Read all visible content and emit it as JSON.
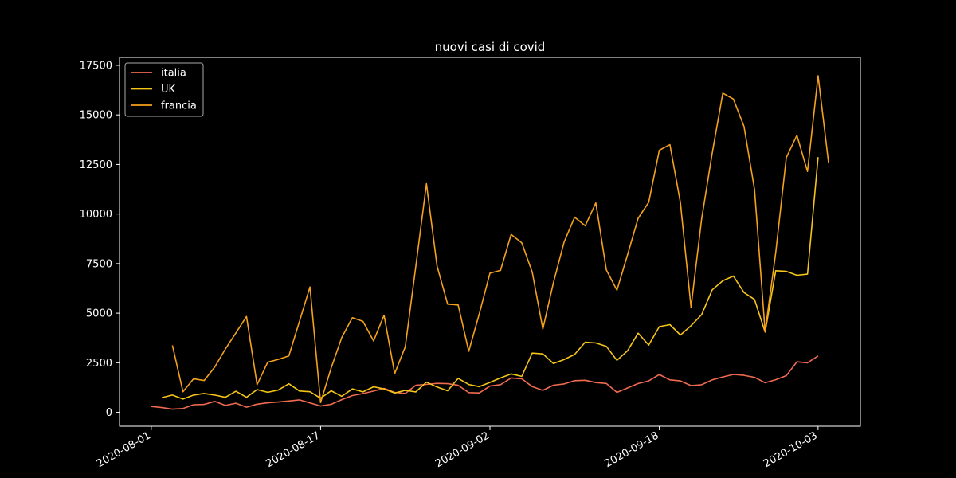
{
  "chart_data": {
    "type": "line",
    "title": "nuovi casi di covid",
    "xlabel": "",
    "ylabel": "",
    "x_start": "2020-08-01",
    "x_end": "2020-10-04",
    "xlim": [
      "2020-07-29",
      "2020-10-07"
    ],
    "ylim": [
      -700,
      17900
    ],
    "x_ticks": [
      "2020-08-01",
      "2020-08-17",
      "2020-09-02",
      "2020-09-18",
      "2020-10-03"
    ],
    "y_ticks": [
      0,
      2500,
      5000,
      7500,
      10000,
      12500,
      15000,
      17500
    ],
    "y_tick_labels": [
      "0",
      "2500",
      "5000",
      "7500",
      "10000",
      "12500",
      "15000",
      "17500"
    ],
    "legend_position": "top-left",
    "grid": false,
    "series": [
      {
        "name": "italia",
        "color": "#ef6a4f",
        "values": [
          295,
          239,
          159,
          190,
          384,
          402,
          552,
          347,
          463,
          259,
          412,
          481,
          523,
          574,
          629,
          479,
          320,
          403,
          642,
          845,
          947,
          1071,
          1210,
          1006,
          953,
          1367,
          1411,
          1460,
          1444,
          1365,
          996,
          978,
          1326,
          1397,
          1733,
          1695,
          1297,
          1108,
          1370,
          1434,
          1597,
          1616,
          1501,
          1458,
          1008,
          1229,
          1452,
          1585,
          1907,
          1638,
          1587,
          1350,
          1392,
          1640,
          1786,
          1912,
          1869,
          1766,
          1494,
          1648,
          1851,
          2548,
          2499,
          2844
        ]
      },
      {
        "name": "UK",
        "color": "#f5c518",
        "values": [
          null,
          744,
          871,
          670,
          869,
          950,
          871,
          758,
          1062,
          758,
          1148,
          1012,
          1124,
          1441,
          1077,
          1040,
          713,
          1089,
          812,
          1182,
          1033,
          1288,
          1182,
          976,
          1108,
          1033,
          1522,
          1276,
          1089,
          1715,
          1406,
          1295,
          1508,
          1735,
          1940,
          1813,
          2988,
          2948,
          2460,
          2659,
          2919,
          3539,
          3497,
          3330,
          2621,
          3105,
          3991,
          3395,
          4322,
          4422,
          3899,
          4368,
          4926,
          6178,
          6634,
          6874,
          6042,
          5693,
          4044,
          7143,
          7108,
          6914,
          6968,
          12872
        ]
      },
      {
        "name": "francia",
        "color": "#f4a11d",
        "values": [
          null,
          null,
          3376,
          1039,
          1695,
          1604,
          2288,
          3192,
          4006,
          4833,
          1397,
          2524,
          2669,
          2846,
          4586,
          6322,
          493,
          2238,
          3776,
          4771,
          4586,
          3602,
          4897,
          1955,
          3304,
          7379,
          11527,
          7379,
          5453,
          5413,
          3082,
          4982,
          7017,
          7157,
          8975,
          8550,
          7071,
          4203,
          6544,
          8577,
          9843,
          9406,
          10561,
          7183,
          6158,
          7942,
          9784,
          10593,
          13215,
          13498,
          10569,
          5298,
          9748,
          13072,
          16096,
          15797,
          14412,
          11243,
          4070,
          8051,
          12845,
          13970,
          12148,
          16972,
          12565
        ]
      }
    ]
  }
}
